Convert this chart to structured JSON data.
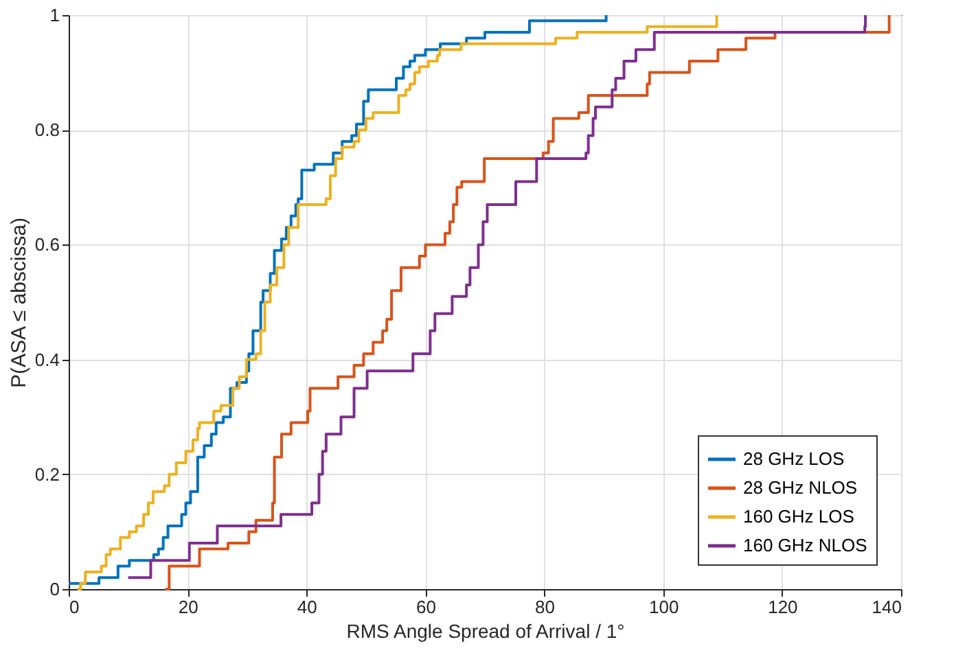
{
  "chart_data": {
    "type": "step",
    "xlabel": "RMS Angle Spread of Arrival / 1°",
    "ylabel": "P(ASA ≤ abscissa)",
    "xlim": [
      0,
      140
    ],
    "ylim": [
      0,
      1
    ],
    "xticks": [
      0,
      20,
      40,
      60,
      80,
      100,
      120,
      140
    ],
    "yticks": [
      0,
      0.2,
      0.4,
      0.6,
      0.8,
      1
    ],
    "grid": true,
    "legend": "bottom right",
    "marker": "none",
    "line_style": "solid",
    "series": [
      {
        "name": "28 GHz LOS",
        "color": "#0072bd",
        "x": [
          0,
          5.1,
          8.3,
          10.2,
          14.3,
          15.1,
          15.9,
          16.7,
          19,
          19.7,
          20.5,
          21.7,
          22.8,
          24,
          24.8,
          26,
          27.2,
          28.3,
          29.9,
          30.3,
          31,
          32.3,
          32.7,
          33.9,
          34.6,
          35.8,
          36.6,
          37.4,
          38.2,
          38.6,
          39.2,
          41.3,
          44.5,
          46,
          47.6,
          48.4,
          49.6,
          50.4,
          55.1,
          56.3,
          57.4,
          58.2,
          60,
          62.5,
          66.9,
          70,
          77.5,
          90.4
        ],
        "values": [
          0.01,
          0.02,
          0.04,
          0.05,
          0.06,
          0.07,
          0.09,
          0.11,
          0.13,
          0.15,
          0.17,
          0.23,
          0.25,
          0.27,
          0.29,
          0.3,
          0.35,
          0.36,
          0.38,
          0.41,
          0.45,
          0.5,
          0.52,
          0.55,
          0.59,
          0.61,
          0.63,
          0.65,
          0.67,
          0.68,
          0.73,
          0.74,
          0.76,
          0.78,
          0.79,
          0.81,
          0.85,
          0.87,
          0.89,
          0.91,
          0.92,
          0.93,
          0.94,
          0.95,
          0.96,
          0.97,
          0.99,
          1
        ]
      },
      {
        "name": "28 GHz NLOS",
        "color": "#d95319",
        "x": [
          16.3,
          16.9,
          22,
          26.8,
          30.3,
          31.5,
          34.3,
          34.6,
          35.8,
          37.4,
          40.2,
          40.6,
          45.3,
          48,
          49.6,
          51.2,
          52.8,
          53.5,
          54.3,
          55.9,
          59,
          60,
          63.3,
          64.1,
          64.7,
          65.3,
          66.1,
          69.9,
          79.8,
          80.7,
          81.5,
          85.8,
          87.4,
          97.3,
          97.7,
          104.4,
          109.2,
          113.9,
          118.8,
          138
        ],
        "values": [
          0,
          0.04,
          0.07,
          0.08,
          0.1,
          0.12,
          0.15,
          0.23,
          0.27,
          0.29,
          0.31,
          0.35,
          0.37,
          0.39,
          0.41,
          0.43,
          0.45,
          0.47,
          0.52,
          0.56,
          0.58,
          0.6,
          0.62,
          0.64,
          0.67,
          0.7,
          0.71,
          0.75,
          0.76,
          0.78,
          0.82,
          0.83,
          0.86,
          0.88,
          0.9,
          0.92,
          0.94,
          0.96,
          0.97,
          1
        ]
      },
      {
        "name": "160 GHz LOS",
        "color": "#edb120",
        "x": [
          1.5,
          2,
          2.8,
          5.5,
          6.3,
          7,
          8.7,
          10.2,
          11.4,
          12.6,
          13.4,
          14.2,
          16.1,
          16.9,
          18.1,
          19.7,
          20.9,
          21.7,
          22,
          24.4,
          25.6,
          27.6,
          28.7,
          29.9,
          31.5,
          32.3,
          33,
          33.9,
          35,
          36.2,
          37,
          38.6,
          43.3,
          44,
          44.9,
          46,
          48,
          48.8,
          50,
          51.2,
          55.5,
          56.7,
          57.4,
          58.2,
          59,
          60.5,
          62,
          62.4,
          66,
          81.9,
          85.5,
          97.3,
          109
        ],
        "values": [
          0,
          0.01,
          0.03,
          0.04,
          0.06,
          0.07,
          0.09,
          0.1,
          0.11,
          0.13,
          0.15,
          0.17,
          0.18,
          0.2,
          0.22,
          0.24,
          0.26,
          0.28,
          0.29,
          0.31,
          0.32,
          0.35,
          0.37,
          0.4,
          0.41,
          0.45,
          0.5,
          0.53,
          0.56,
          0.6,
          0.63,
          0.67,
          0.68,
          0.72,
          0.75,
          0.77,
          0.78,
          0.8,
          0.82,
          0.83,
          0.86,
          0.87,
          0.88,
          0.9,
          0.91,
          0.92,
          0.93,
          0.94,
          0.95,
          0.96,
          0.97,
          0.98,
          1
        ]
      },
      {
        "name": "160 GHz NLOS",
        "color": "#7e2f8e",
        "x": [
          10,
          13.8,
          20.3,
          25,
          35.7,
          40.9,
          42.1,
          42.7,
          43.3,
          45.8,
          48,
          50.2,
          57.9,
          60.8,
          61.6,
          64.5,
          66.9,
          67.5,
          68.9,
          69.7,
          70.4,
          75.2,
          78.7,
          87,
          87.4,
          88.2,
          88.6,
          91.4,
          92,
          93.4,
          95.4,
          98.5,
          133.9,
          134
        ],
        "values": [
          0.02,
          0.05,
          0.08,
          0.11,
          0.13,
          0.15,
          0.2,
          0.24,
          0.27,
          0.3,
          0.35,
          0.38,
          0.41,
          0.45,
          0.48,
          0.51,
          0.53,
          0.56,
          0.6,
          0.64,
          0.67,
          0.71,
          0.75,
          0.76,
          0.79,
          0.82,
          0.84,
          0.87,
          0.89,
          0.92,
          0.94,
          0.97,
          0.98,
          1
        ]
      }
    ]
  }
}
